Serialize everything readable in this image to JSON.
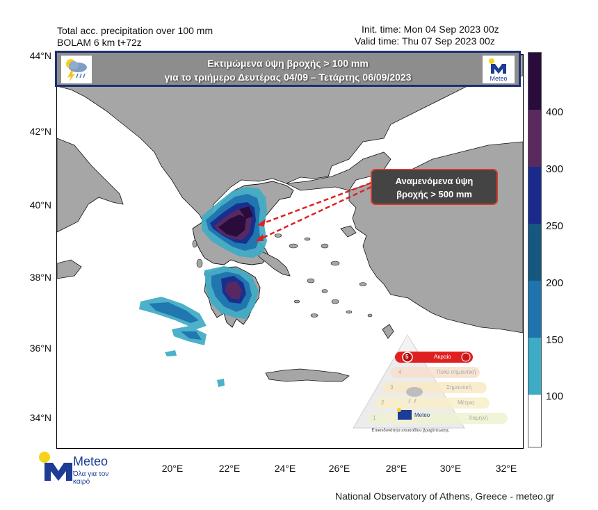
{
  "header": {
    "title_line1": "Total acc. precipitation over 100 mm",
    "title_line2": "BOLAM 6 km t+72z",
    "init_time": "Init. time: Mon 04 Sep 2023 00z",
    "valid_time": "Valid time: Thu 07 Sep 2023 00z"
  },
  "banner": {
    "line1": "Εκτιμώμενα ύψη βροχής > 100 mm",
    "line2": "για το τριήμερο Δευτέρας 04/09 – Τετάρτης 06/09/2023",
    "logo_label": "Meteo"
  },
  "callout": {
    "line1": "Αναμενόμενα ύψη",
    "line2": "βροχής > 500 mm",
    "arrow_color": "#e02020"
  },
  "axes": {
    "y_labels": [
      "44°N",
      "42°N",
      "40°N",
      "38°N",
      "36°N",
      "34°N"
    ],
    "x_labels": [
      "20°E",
      "22°E",
      "24°E",
      "26°E",
      "28°E",
      "30°E",
      "32°E"
    ]
  },
  "colorbar": {
    "labels": [
      "400",
      "300",
      "250",
      "200",
      "150",
      "100"
    ],
    "colors": {
      "above_400": "#2a0c3c",
      "300_400": "#5a2a5e",
      "250_300": "#1a2a8c",
      "200_250": "#15577f",
      "150_200": "#1f74ae",
      "100_150": "#3eabc5",
      "below_100": "#ffffff"
    }
  },
  "colors": {
    "land": "#a6a6a6",
    "sea": "#ffffff",
    "border": "#111111",
    "brand_blue": "#1c3c96",
    "brand_yellow": "#f6d21c"
  },
  "warning_pyramid": {
    "title": "Επικινδυνότητα επεισοδίου βροχόπτωσης",
    "levels": [
      {
        "num": "5",
        "label": "Ακραίο"
      },
      {
        "num": "4",
        "label": "Πολύ σημαντική"
      },
      {
        "num": "3",
        "label": "Σημαντική"
      },
      {
        "num": "2",
        "label": "Μέτρια"
      },
      {
        "num": "1",
        "label": "Χαμηλή"
      }
    ],
    "logo_label": "Meteo"
  },
  "footer": {
    "logo_name": "Meteo",
    "logo_slogan": "Όλα για τον καιρό",
    "credit": "National Observatory of Athens, Greece - meteo.gr"
  }
}
